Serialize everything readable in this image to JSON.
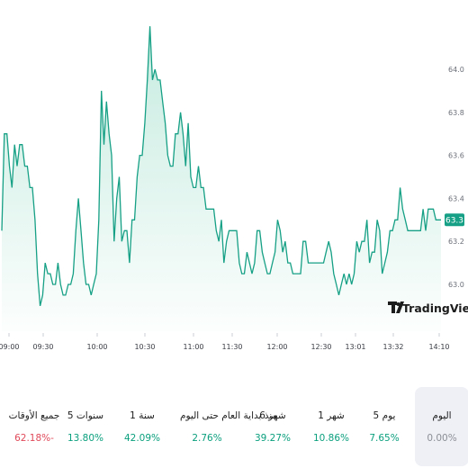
{
  "chart_data": {
    "type": "area",
    "y_ticks": [
      "63.0",
      "63.2",
      "63.4",
      "63.6",
      "63.8",
      "64.0"
    ],
    "ylim": [
      62.85,
      64.2
    ],
    "x_tick_labels": [
      "09:00",
      "09:30",
      "10:00",
      "10:30",
      "11:00",
      "11:30",
      "12:00",
      "12:30",
      "13:01",
      "13:32",
      "14:10"
    ],
    "values": [
      63.25,
      63.7,
      63.7,
      63.55,
      63.45,
      63.65,
      63.55,
      63.65,
      63.65,
      63.55,
      63.55,
      63.45,
      63.45,
      63.3,
      63.05,
      62.9,
      62.95,
      63.1,
      63.05,
      63.05,
      63,
      63,
      63.1,
      63,
      62.95,
      62.95,
      63,
      63,
      63.05,
      63.25,
      63.4,
      63.25,
      63.1,
      63,
      63,
      62.95,
      63,
      63.05,
      63.3,
      63.9,
      63.65,
      63.85,
      63.7,
      63.6,
      63.2,
      63.4,
      63.5,
      63.2,
      63.25,
      63.25,
      63.1,
      63.3,
      63.3,
      63.5,
      63.6,
      63.6,
      63.75,
      63.95,
      64.2,
      63.95,
      64,
      63.95,
      63.95,
      63.85,
      63.75,
      63.6,
      63.55,
      63.55,
      63.7,
      63.7,
      63.8,
      63.7,
      63.55,
      63.75,
      63.5,
      63.45,
      63.45,
      63.55,
      63.45,
      63.45,
      63.35,
      63.35,
      63.35,
      63.35,
      63.25,
      63.2,
      63.3,
      63.1,
      63.2,
      63.25,
      63.25,
      63.25,
      63.25,
      63.1,
      63.05,
      63.05,
      63.15,
      63.1,
      63.05,
      63.1,
      63.25,
      63.25,
      63.15,
      63.1,
      63.05,
      63.05,
      63.1,
      63.15,
      63.3,
      63.25,
      63.15,
      63.2,
      63.1,
      63.1,
      63.05,
      63.05,
      63.05,
      63.05,
      63.2,
      63.2,
      63.1,
      63.1,
      63.1,
      63.1,
      63.1,
      63.1,
      63.1,
      63.15,
      63.2,
      63.15,
      63.05,
      63,
      62.95,
      63,
      63.05,
      63,
      63.05,
      63,
      63.05,
      63.2,
      63.15,
      63.2,
      63.2,
      63.3,
      63.1,
      63.15,
      63.15,
      63.3,
      63.25,
      63.05,
      63.1,
      63.15,
      63.25,
      63.25,
      63.3,
      63.3,
      63.45,
      63.35,
      63.3,
      63.25,
      63.25,
      63.25,
      63.25,
      63.25,
      63.25,
      63.35,
      63.25,
      63.35,
      63.35,
      63.35,
      63.3,
      63.3,
      63.3
    ],
    "last_value": "63.3",
    "line_color": "#16a085",
    "area_color": "#d9f3ec"
  },
  "watermark": "TradingView",
  "periods": [
    {
      "label": "اليوم",
      "value": "0.00%",
      "tone": "neutral",
      "active": true
    },
    {
      "label": "5 يوم",
      "value": "7.65%",
      "tone": "positive"
    },
    {
      "label": "1 شهر",
      "value": "10.86%",
      "tone": "positive"
    },
    {
      "label": "6 شهر",
      "value": "39.27%",
      "tone": "positive"
    },
    {
      "label": "منذ بداية العام حتى اليوم",
      "value": "2.76%",
      "tone": "positive"
    },
    {
      "label": "1 سنة",
      "value": "42.09%",
      "tone": "positive"
    },
    {
      "label": "5 سنوات",
      "value": "13.80%",
      "tone": "positive"
    },
    {
      "label": "جميع الأوقات",
      "value": "62.18%-",
      "tone": "negative"
    }
  ]
}
